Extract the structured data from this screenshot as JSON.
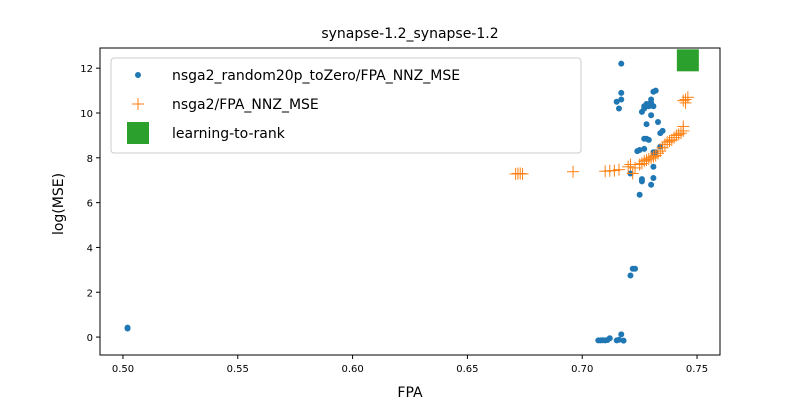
{
  "chart_data": {
    "type": "scatter",
    "title": "synapse-1.2_synapse-1.2",
    "xlabel": "FPA",
    "ylabel": "log(MSE)",
    "xlim": [
      0.49,
      0.76
    ],
    "ylim": [
      -0.8,
      12.9
    ],
    "xticks": [
      0.5,
      0.55,
      0.6,
      0.65,
      0.7,
      0.75
    ],
    "xtick_labels": [
      "0.50",
      "0.55",
      "0.60",
      "0.65",
      "0.70",
      "0.75"
    ],
    "yticks": [
      0,
      2,
      4,
      6,
      8,
      10,
      12
    ],
    "ytick_labels": [
      "0",
      "2",
      "4",
      "6",
      "8",
      "10",
      "12"
    ],
    "grid": false,
    "legend_position": "top-left",
    "series": [
      {
        "name": "nsga2_random20p_toZero/FPA_NNZ_MSE",
        "marker": "circle",
        "color": "#1f77b4",
        "points": [
          [
            0.502,
            0.42
          ],
          [
            0.502,
            0.38
          ],
          [
            0.707,
            -0.15
          ],
          [
            0.708,
            -0.15
          ],
          [
            0.709,
            -0.14
          ],
          [
            0.71,
            -0.15
          ],
          [
            0.711,
            -0.13
          ],
          [
            0.712,
            -0.05
          ],
          [
            0.715,
            -0.15
          ],
          [
            0.716,
            -0.12
          ],
          [
            0.717,
            0.12
          ],
          [
            0.718,
            -0.16
          ],
          [
            0.721,
            2.75
          ],
          [
            0.722,
            3.05
          ],
          [
            0.723,
            3.05
          ],
          [
            0.717,
            12.2
          ],
          [
            0.717,
            10.9
          ],
          [
            0.717,
            10.6
          ],
          [
            0.715,
            10.5
          ],
          [
            0.716,
            10.2
          ],
          [
            0.721,
            7.3
          ],
          [
            0.724,
            8.3
          ],
          [
            0.725,
            8.35
          ],
          [
            0.725,
            6.35
          ],
          [
            0.726,
            6.95
          ],
          [
            0.726,
            7.05
          ],
          [
            0.727,
            8.4
          ],
          [
            0.727,
            8.85
          ],
          [
            0.728,
            8.85
          ],
          [
            0.729,
            8.8
          ],
          [
            0.728,
            9.5
          ],
          [
            0.726,
            10.05
          ],
          [
            0.727,
            10.2
          ],
          [
            0.727,
            10.3
          ],
          [
            0.728,
            10.3
          ],
          [
            0.728,
            10.4
          ],
          [
            0.729,
            10.3
          ],
          [
            0.729,
            10.4
          ],
          [
            0.73,
            10.35
          ],
          [
            0.73,
            10.45
          ],
          [
            0.731,
            10.3
          ],
          [
            0.731,
            10.95
          ],
          [
            0.732,
            11.0
          ],
          [
            0.73,
            10.6
          ],
          [
            0.73,
            9.9
          ],
          [
            0.731,
            8.25
          ],
          [
            0.731,
            7.6
          ],
          [
            0.731,
            7.1
          ],
          [
            0.73,
            6.8
          ],
          [
            0.732,
            8.25
          ],
          [
            0.734,
            8.5
          ],
          [
            0.734,
            9.1
          ],
          [
            0.733,
            9.6
          ],
          [
            0.735,
            9.2
          ]
        ]
      },
      {
        "name": "nsga2/FPA_NNZ_MSE",
        "marker": "plus",
        "color": "#ff7f0e",
        "points": [
          [
            0.671,
            7.28
          ],
          [
            0.672,
            7.3
          ],
          [
            0.673,
            7.3
          ],
          [
            0.674,
            7.28
          ],
          [
            0.696,
            7.38
          ],
          [
            0.71,
            7.4
          ],
          [
            0.712,
            7.42
          ],
          [
            0.714,
            7.43
          ],
          [
            0.716,
            7.47
          ],
          [
            0.72,
            7.6
          ],
          [
            0.721,
            7.7
          ],
          [
            0.722,
            7.3
          ],
          [
            0.723,
            7.55
          ],
          [
            0.725,
            7.7
          ],
          [
            0.726,
            7.75
          ],
          [
            0.727,
            7.85
          ],
          [
            0.728,
            7.9
          ],
          [
            0.729,
            7.95
          ],
          [
            0.73,
            8.0
          ],
          [
            0.731,
            8.05
          ],
          [
            0.732,
            8.1
          ],
          [
            0.733,
            8.2
          ],
          [
            0.734,
            8.3
          ],
          [
            0.735,
            8.45
          ],
          [
            0.736,
            8.6
          ],
          [
            0.737,
            8.7
          ],
          [
            0.738,
            8.75
          ],
          [
            0.739,
            8.8
          ],
          [
            0.74,
            8.9
          ],
          [
            0.741,
            9.0
          ],
          [
            0.742,
            9.05
          ],
          [
            0.743,
            9.1
          ],
          [
            0.744,
            9.2
          ],
          [
            0.744,
            9.4
          ],
          [
            0.745,
            10.45
          ],
          [
            0.745,
            10.6
          ],
          [
            0.746,
            10.7
          ],
          [
            0.744,
            10.55
          ]
        ]
      },
      {
        "name": "learning-to-rank",
        "marker": "square",
        "color": "#2ca02c",
        "points": [
          [
            0.746,
            12.35
          ]
        ]
      }
    ]
  }
}
